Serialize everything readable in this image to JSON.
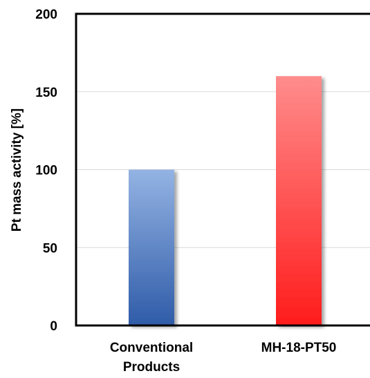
{
  "chart_data": {
    "type": "bar",
    "title": "",
    "xlabel": "",
    "ylabel": "Pt mass activity [%]",
    "ylim": [
      0,
      200
    ],
    "yticks": [
      0,
      50,
      100,
      150,
      200
    ],
    "grid": true,
    "categories": [
      [
        "Conventional",
        "Products"
      ],
      [
        "MH-18-PT50"
      ]
    ],
    "values": [
      100,
      160
    ],
    "bar_colors": [
      {
        "top": "#93b3e3",
        "bottom": "#2f5ba8"
      },
      {
        "top": "#ff8c8c",
        "bottom": "#ff1c1c"
      }
    ]
  }
}
